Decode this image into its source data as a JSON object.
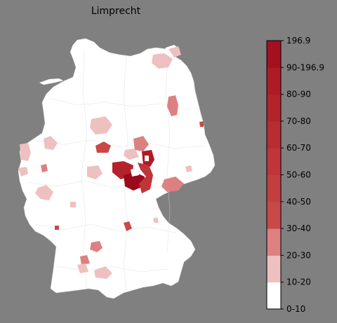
{
  "title": "Limprecht",
  "colorbar": {
    "max_label": "196.9",
    "tick_labels": [
      "0-10",
      "10-20",
      "20-30",
      "30-40",
      "40-50",
      "50-60",
      "60-70",
      "70-80",
      "80-90",
      "90-196.9",
      "196.9"
    ],
    "colors": [
      "#ffffff",
      "#eec0c0",
      "#dd8080",
      "#c94848",
      "#c43e40",
      "#bf353a",
      "#ba2c33",
      "#b4222c",
      "#ae1a26",
      "#a51020",
      "#9a0a1a"
    ]
  },
  "map": {
    "region": "Germany (districts)",
    "background": "#808080",
    "base_fill": "#ffffff"
  }
}
